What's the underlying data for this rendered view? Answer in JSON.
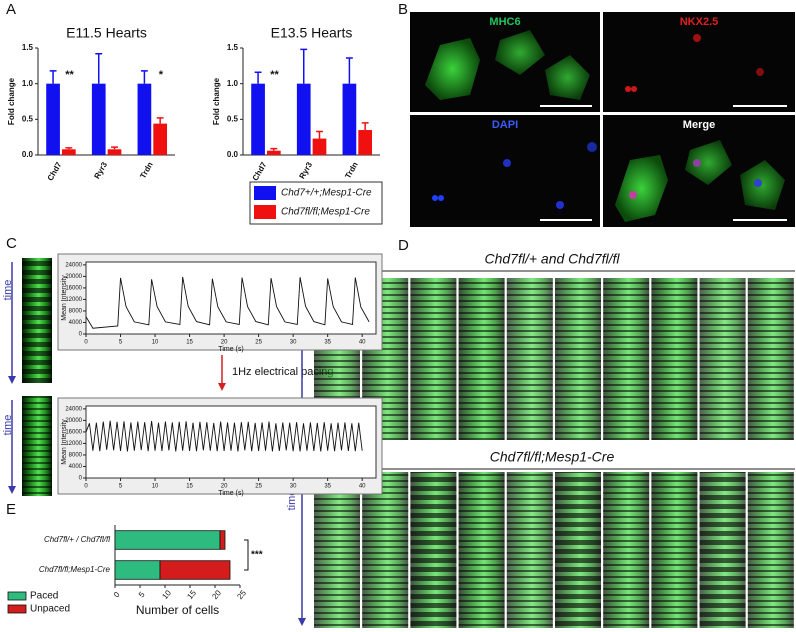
{
  "panels": [
    "A",
    "B",
    "C",
    "D",
    "E"
  ],
  "microscopy": {
    "labels": [
      "MHC6",
      "NKX2.5",
      "DAPI",
      "Merge"
    ]
  },
  "pacing_label": "1Hz electrical pacing",
  "time_label": "time",
  "kymograph_titles": [
    "Chd7fl/+ and Chd7fl/fl",
    "Chd7fl/fl;Mesp1-Cre"
  ],
  "chart_data": [
    {
      "type": "bar",
      "title": "E11.5 Hearts",
      "y_label": "Fold change",
      "categories": [
        "Chd7",
        "Ryr3",
        "Trdn"
      ],
      "series": [
        {
          "name": "Chd7+/+;Mesp1-Cre",
          "color": "#1010f0",
          "values": [
            1,
            1,
            1
          ],
          "errors": [
            0.18,
            0.42,
            0.18
          ]
        },
        {
          "name": "Chd7fl/fl;Mesp1-Cre",
          "color": "#f01010",
          "values": [
            0.08,
            0.08,
            0.44
          ],
          "errors": [
            0.02,
            0.03,
            0.08
          ]
        }
      ],
      "annotations": [
        "**",
        null,
        "*"
      ],
      "ylim": [
        0,
        1.5
      ],
      "yticks": [
        {
          "value": 0,
          "label": "0.0"
        },
        0.5,
        {
          "value": 1,
          "label": "1.0"
        },
        1.5
      ]
    },
    {
      "type": "bar",
      "title": "E13.5 Hearts",
      "y_label": "Fold change",
      "categories": [
        "Chd7",
        "Ryr3",
        "Trdn"
      ],
      "series": [
        {
          "color": "#1010f0",
          "values": [
            1,
            1,
            1
          ],
          "errors": [
            0.16,
            0.48,
            0.36
          ]
        },
        {
          "color": "#f01010",
          "values": [
            0.06,
            0.23,
            0.35
          ],
          "errors": [
            0.03,
            0.1,
            0.1
          ]
        }
      ],
      "annotations": [
        "**",
        null,
        null
      ],
      "ylim": [
        0,
        1.5
      ],
      "yticks": [
        {
          "value": 0,
          "label": "0.0"
        },
        0.5,
        {
          "value": 1,
          "label": "1.0"
        },
        1.5
      ]
    },
    {
      "type": "line",
      "x_label": "Time (s)",
      "y_label": "Mean Intensity",
      "x": [
        0,
        1,
        4.6,
        5,
        5.8,
        7,
        9.1,
        9.5,
        10.3,
        11.5,
        13.6,
        14,
        14.8,
        16,
        17.9,
        18.3,
        19.1,
        20.3,
        22.2,
        22.6,
        23.4,
        24.6,
        26.4,
        26.8,
        27.6,
        28.8,
        30.6,
        31,
        31.8,
        33,
        34.6,
        35,
        35.8,
        37,
        38.6,
        39,
        39.8,
        41
      ],
      "series": [
        {
          "color": "#111111",
          "values": [
            6000,
            2000,
            2800,
            19500,
            9500,
            4200,
            3200,
            19000,
            9500,
            4200,
            3300,
            19800,
            9600,
            4300,
            3200,
            19200,
            9400,
            4200,
            3300,
            19600,
            9500,
            4300,
            3200,
            19400,
            9500,
            4200,
            3300,
            19700,
            9600,
            4300,
            3200,
            19300,
            9500,
            4200,
            3300,
            19600,
            9400,
            4200
          ]
        }
      ],
      "xlim": [
        0,
        42
      ],
      "xticks": [
        0,
        5,
        10,
        15,
        20,
        25,
        30,
        35,
        40
      ],
      "ylim": [
        0,
        25000
      ],
      "yticks": [
        0,
        4000,
        8000,
        12000,
        16000,
        20000,
        24000
      ]
    },
    {
      "type": "line",
      "x_label": "Time (s)",
      "y_label": "Mean Intensity",
      "x": [
        0,
        0.5,
        1,
        1.5,
        2,
        2.5,
        3,
        3.5,
        4,
        4.5,
        5,
        5.5,
        6,
        6.5,
        7,
        7.5,
        8,
        8.5,
        9,
        9.5,
        10,
        10.5,
        11,
        11.5,
        12,
        12.5,
        13,
        13.5,
        14,
        14.5,
        15,
        15.5,
        16,
        16.5,
        17,
        17.5,
        18,
        18.5,
        19,
        19.5,
        20,
        20.5,
        21,
        21.5,
        22,
        22.5,
        23,
        23.5,
        24,
        24.5,
        25,
        25.5,
        26,
        26.5,
        27,
        27.5,
        28,
        28.5,
        29,
        29.5,
        30,
        30.5,
        31,
        31.5,
        32,
        32.5,
        33,
        33.5,
        34,
        34.5,
        35,
        35.5,
        36,
        36.5,
        37,
        37.5,
        38,
        38.5,
        39,
        39.5,
        40
      ],
      "series": [
        {
          "color": "#111111",
          "values": [
            16000,
            19000,
            9500,
            19200,
            9300,
            19600,
            9800,
            19900,
            9600,
            19500,
            9400,
            19700,
            9200,
            19300,
            9500,
            19600,
            9700,
            19400,
            9300,
            19800,
            9500,
            19200,
            9400,
            19600,
            9600,
            19300,
            9200,
            19500,
            9500,
            19700,
            9400,
            19200,
            9300,
            19500,
            9600,
            19400,
            9500,
            19100,
            9300,
            19600,
            9400,
            19300,
            9500,
            19200,
            9200,
            19400,
            9600,
            19500,
            9300,
            19100,
            9400,
            19300,
            9500,
            19600,
            9200,
            19000,
            9400,
            19300,
            9600,
            19200,
            9300,
            19400,
            9200,
            19000,
            9500,
            19300,
            9400,
            19100,
            9200,
            19400,
            9500,
            19000,
            9300,
            19200,
            9600,
            19300,
            9400,
            19000,
            9300,
            19200,
            9500
          ]
        }
      ],
      "xlim": [
        0,
        42
      ],
      "xticks": [
        0,
        5,
        10,
        15,
        20,
        25,
        30,
        35,
        40
      ],
      "ylim": [
        0,
        25000
      ],
      "yticks": [
        0,
        4000,
        8000,
        12000,
        16000,
        20000,
        24000
      ]
    },
    {
      "type": "hbar",
      "x_label": "Number of cells",
      "categories": [
        "Chd7fl/+ / Chd7fl/fl",
        "Chd7fl/fl;Mesp1-Cre"
      ],
      "series": [
        {
          "name": "Paced",
          "color": "#2dbb80",
          "values": [
            21,
            9
          ]
        },
        {
          "name": "Unpaced",
          "color": "#d41c1c",
          "values": [
            1,
            14
          ]
        }
      ],
      "annotation": "***",
      "xlim": [
        0,
        25
      ],
      "xticks": [
        0,
        5,
        10,
        15,
        20,
        25
      ]
    }
  ]
}
